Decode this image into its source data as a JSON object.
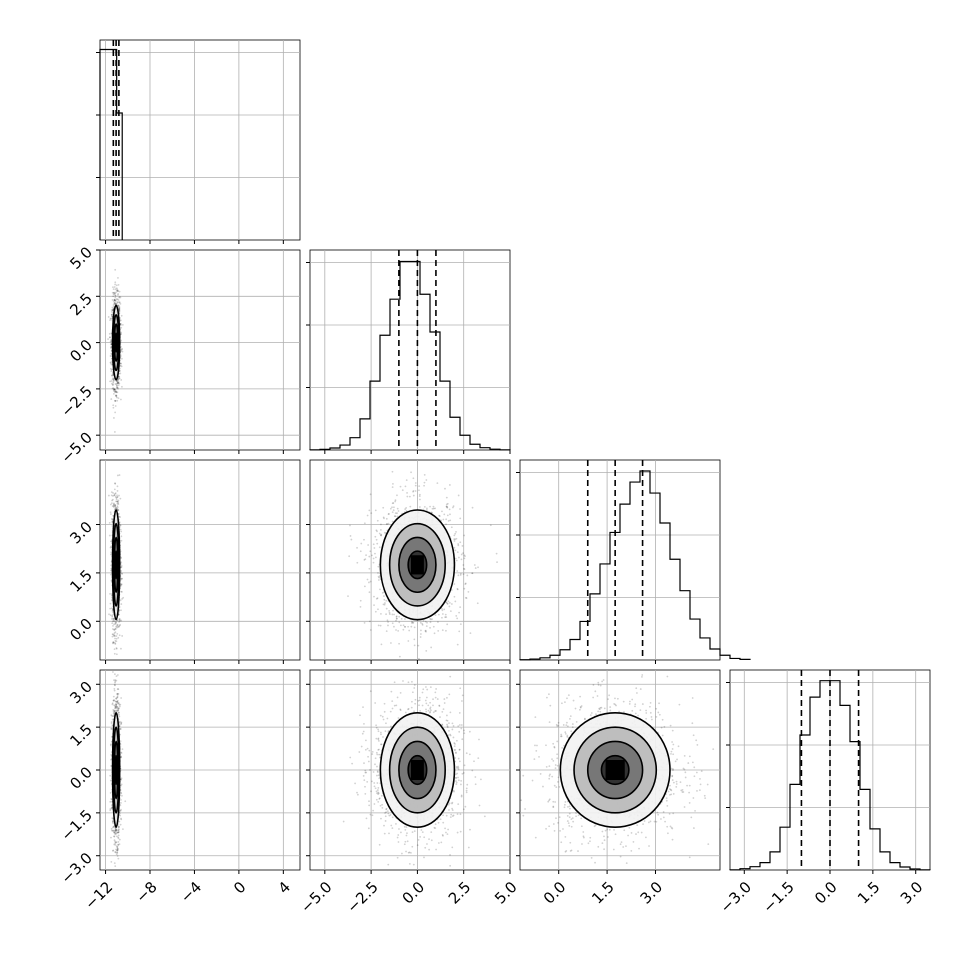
{
  "chart_data": {
    "type": "corner",
    "grid": true,
    "parameters": [
      {
        "range": [
          -12.5,
          5.5
        ],
        "ticks": [
          -12,
          -8,
          -4,
          0,
          4
        ],
        "tick_labels": [
          "−12",
          "−8",
          "−4",
          "0",
          "4"
        ],
        "quantiles": [
          -11.3,
          -11.05,
          -10.8
        ],
        "median": -11.05,
        "std": 0.15
      },
      {
        "range": [
          -5.8,
          5.0
        ],
        "ticks": [
          -5,
          -2.5,
          0,
          2.5,
          5
        ],
        "tick_labels": [
          "−5.0",
          "−2.5",
          "0.0",
          "2.5",
          "5.0"
        ],
        "quantiles": [
          -1.0,
          0.0,
          1.0
        ],
        "median": 0.0,
        "std": 1.0
      },
      {
        "range": [
          -1.2,
          5.0
        ],
        "ticks": [
          0,
          1.5,
          3
        ],
        "tick_labels": [
          "0.0",
          "1.5",
          "3.0"
        ],
        "quantiles": [
          0.9,
          1.75,
          2.6
        ],
        "median": 1.75,
        "std": 0.85
      },
      {
        "range": [
          -3.5,
          3.5
        ],
        "ticks": [
          -3,
          -1.5,
          0,
          1.5,
          3
        ],
        "tick_labels": [
          "−3.0",
          "−1.5",
          "0.0",
          "1.5",
          "3.0"
        ],
        "quantiles": [
          -1.0,
          0.0,
          1.0
        ],
        "median": 0.0,
        "std": 1.0
      }
    ],
    "histograms": [
      {
        "param": 0,
        "bins": [
          3000,
          2000
        ],
        "bin_edges": [
          -12.5,
          -11.0,
          -10.5
        ],
        "ymax": 3150
      },
      {
        "param": 1,
        "bin_start": -5.8,
        "bin_width": 0.54,
        "counts": [
          1,
          4,
          12,
          30,
          75,
          190,
          420,
          700,
          920,
          1150,
          1150,
          950,
          720,
          420,
          200,
          90,
          35,
          14,
          5,
          1
        ],
        "ymax": 1220
      },
      {
        "param": 2,
        "bin_start": -1.2,
        "bin_width": 0.31,
        "counts": [
          2,
          6,
          14,
          30,
          65,
          130,
          245,
          420,
          610,
          810,
          990,
          1130,
          1200,
          1060,
          870,
          640,
          440,
          260,
          140,
          70,
          30,
          10,
          4
        ],
        "ymax": 1270
      },
      {
        "param": 3,
        "bin_start": -3.5,
        "bin_width": 0.35,
        "counts": [
          1,
          8,
          20,
          45,
          110,
          260,
          520,
          820,
          1050,
          1150,
          1150,
          1000,
          780,
          490,
          250,
          110,
          45,
          18,
          6,
          1
        ],
        "ymax": 1215
      }
    ],
    "pairs": [
      {
        "x_param": 0,
        "y_param": 1,
        "center": [
          -11.05,
          0.0
        ],
        "sigma": [
          0.16,
          1.0
        ]
      },
      {
        "x_param": 0,
        "y_param": 2,
        "center": [
          -11.05,
          1.75
        ],
        "sigma": [
          0.16,
          0.85
        ]
      },
      {
        "x_param": 0,
        "y_param": 3,
        "center": [
          -11.05,
          0.0
        ],
        "sigma": [
          0.16,
          1.0
        ]
      },
      {
        "x_param": 1,
        "y_param": 2,
        "center": [
          0.0,
          1.75
        ],
        "sigma": [
          1.0,
          0.85
        ]
      },
      {
        "x_param": 1,
        "y_param": 3,
        "center": [
          0.0,
          0.0
        ],
        "sigma": [
          1.0,
          1.0
        ]
      },
      {
        "x_param": 2,
        "y_param": 3,
        "center": [
          1.75,
          0.0
        ],
        "sigma": [
          0.85,
          1.0
        ]
      }
    ],
    "contour_levels_sigma": [
      0.5,
      1.0,
      1.5,
      2.0
    ]
  }
}
